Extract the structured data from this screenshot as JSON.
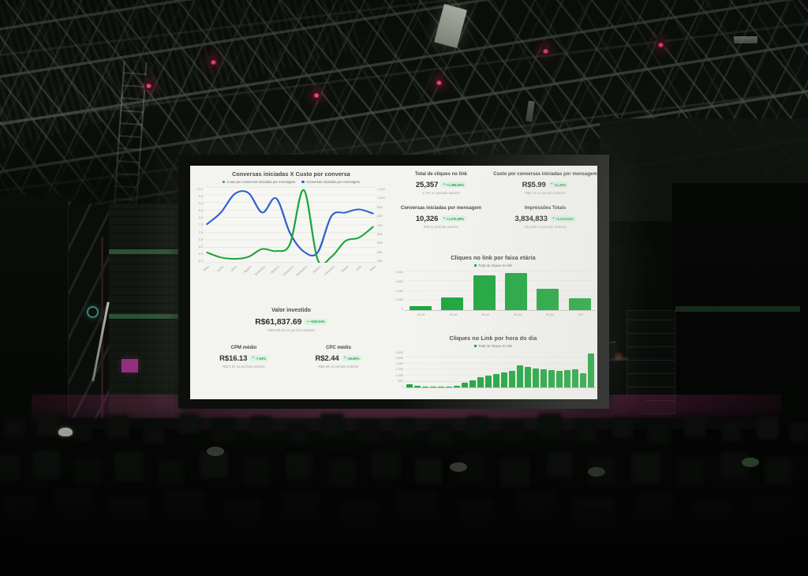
{
  "scene": {
    "colors": {
      "venue_black": "#070a07",
      "stage_glow_magenta": "#db529b",
      "screen_frame": "#0d0f0d",
      "dashboard_bg": "#f3f3f0"
    }
  },
  "dashboard_colors": {
    "accent_green": "#1ca53e",
    "line_blue": "#2f5fd0",
    "badge_bg": "#dcf3e2",
    "badge_text": "#27a348"
  },
  "kpis": [
    {
      "title": "Total de cliques no link",
      "value": "25,357",
      "arrow": "▲",
      "delta": "+1,388.06%",
      "previous": "1,704 no período anterior"
    },
    {
      "title": "Custo por conversas iniciadas por mensagem",
      "value": "R$5.99",
      "arrow": "▼",
      "delta": "-11.26%",
      "previous": "R$6.75 no período anterior"
    },
    {
      "title": "Conversas iniciadas por mensagem",
      "value": "10,326",
      "arrow": "▲",
      "delta": "+1,076.08%",
      "previous": "878 no período anterior"
    },
    {
      "title": "Impressões Totais",
      "value": "3,834,833",
      "arrow": "▲",
      "delta": "+1,033.04%",
      "previous": "338,458 no período anterior"
    },
    {
      "title": "Valor investido",
      "value": "R$61,837.69",
      "arrow": "▲",
      "delta": "+942.94%",
      "previous": "R$5,929.16 no período anterior"
    },
    {
      "title": "CPM médio",
      "value": "R$16.13",
      "arrow": "▼",
      "delta": "-7.93%",
      "previous": "R$17.52 no período anterior"
    },
    {
      "title": "CPC médio",
      "value": "R$2.44",
      "arrow": "▼",
      "delta": "-29.89%",
      "previous": "R$3.48 no período anterior"
    }
  ],
  "chart_data": [
    {
      "type": "line",
      "title": "Conversas iniciadas X Custo por conversa",
      "x": [
        "Maio",
        "Junho",
        "Julho",
        "Agosto",
        "Setembro",
        "Outubro",
        "Novembro",
        "Dezembro",
        "Janeiro",
        "Fevereiro",
        "Março",
        "Abril",
        "Maio"
      ],
      "series": [
        {
          "name": "Custo por conversas iniciadas por mensagem",
          "color": "#1ca53e",
          "axis": "left",
          "values": [
            5.5,
            5.15,
            5.05,
            5.2,
            5.75,
            5.6,
            6.1,
            9.9,
            5.0,
            5.2,
            6.3,
            6.55,
            7.3
          ]
        },
        {
          "name": "Conversas iniciadas por mensagem",
          "color": "#2f5fd0",
          "axis": "right",
          "values": [
            700,
            830,
            1040,
            1050,
            830,
            990,
            600,
            390,
            380,
            790,
            830,
            865,
            820
          ]
        }
      ],
      "left_axis": {
        "min": 5.0,
        "max": 10.0,
        "step": 0.5
      },
      "right_axis": {
        "min": 300,
        "max": 1100,
        "step": 100
      },
      "grid": true,
      "legend_position": "top"
    },
    {
      "type": "bar",
      "title": "Cliques no link por faixa etária",
      "legend": "Total de cliques no link",
      "categories": [
        "18-24",
        "25-34",
        "35-44",
        "45-54",
        "55-64",
        "65+"
      ],
      "values": [
        800,
        2600,
        7000,
        7600,
        4400,
        2400
      ],
      "ylim": [
        0,
        8000
      ],
      "yticks": [
        "8,000",
        "6,000",
        "4,000",
        "2,000",
        "0"
      ],
      "bar_color": "#1ba63c"
    },
    {
      "type": "bar",
      "title": "Cliques no Link por hora do dia",
      "legend": "Total de cliques no link",
      "categories": [
        "0",
        "1",
        "2",
        "3",
        "4",
        "5",
        "6",
        "7",
        "8",
        "9",
        "10",
        "11",
        "12",
        "13",
        "14",
        "15",
        "16",
        "17",
        "18",
        "19",
        "20",
        "21",
        "22",
        "23"
      ],
      "values": [
        250,
        120,
        90,
        80,
        80,
        90,
        160,
        380,
        560,
        820,
        1000,
        1120,
        1250,
        1400,
        1850,
        1700,
        1550,
        1500,
        1450,
        1400,
        1450,
        1500,
        1150,
        2800
      ],
      "ylim": [
        0,
        3000
      ],
      "yticks": [
        "3,000",
        "2,500",
        "2,000",
        "1,500",
        "1,000",
        "500",
        "0"
      ],
      "bar_color": "#1ba63c"
    }
  ]
}
